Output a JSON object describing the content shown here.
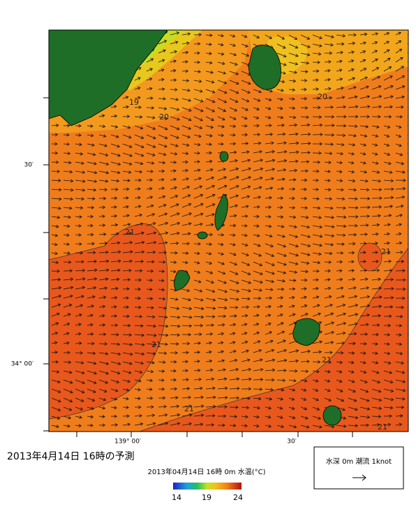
{
  "map": {
    "lat_labels": [
      "30′",
      "34° 00′"
    ],
    "lon_labels": [
      "139° 00′",
      "30′"
    ],
    "contour_labels": [
      "21",
      "19",
      "20",
      "20",
      "21",
      "21",
      "21",
      "21",
      "21"
    ]
  },
  "caption": "2013年4月14日  16時の予測",
  "colorbar": {
    "title": "2013年04月14日 16時 0m 水温(°C)",
    "ticks": [
      "14",
      "19",
      "24"
    ]
  },
  "legend": {
    "label": "水深 0m 潮流 1knot"
  }
}
